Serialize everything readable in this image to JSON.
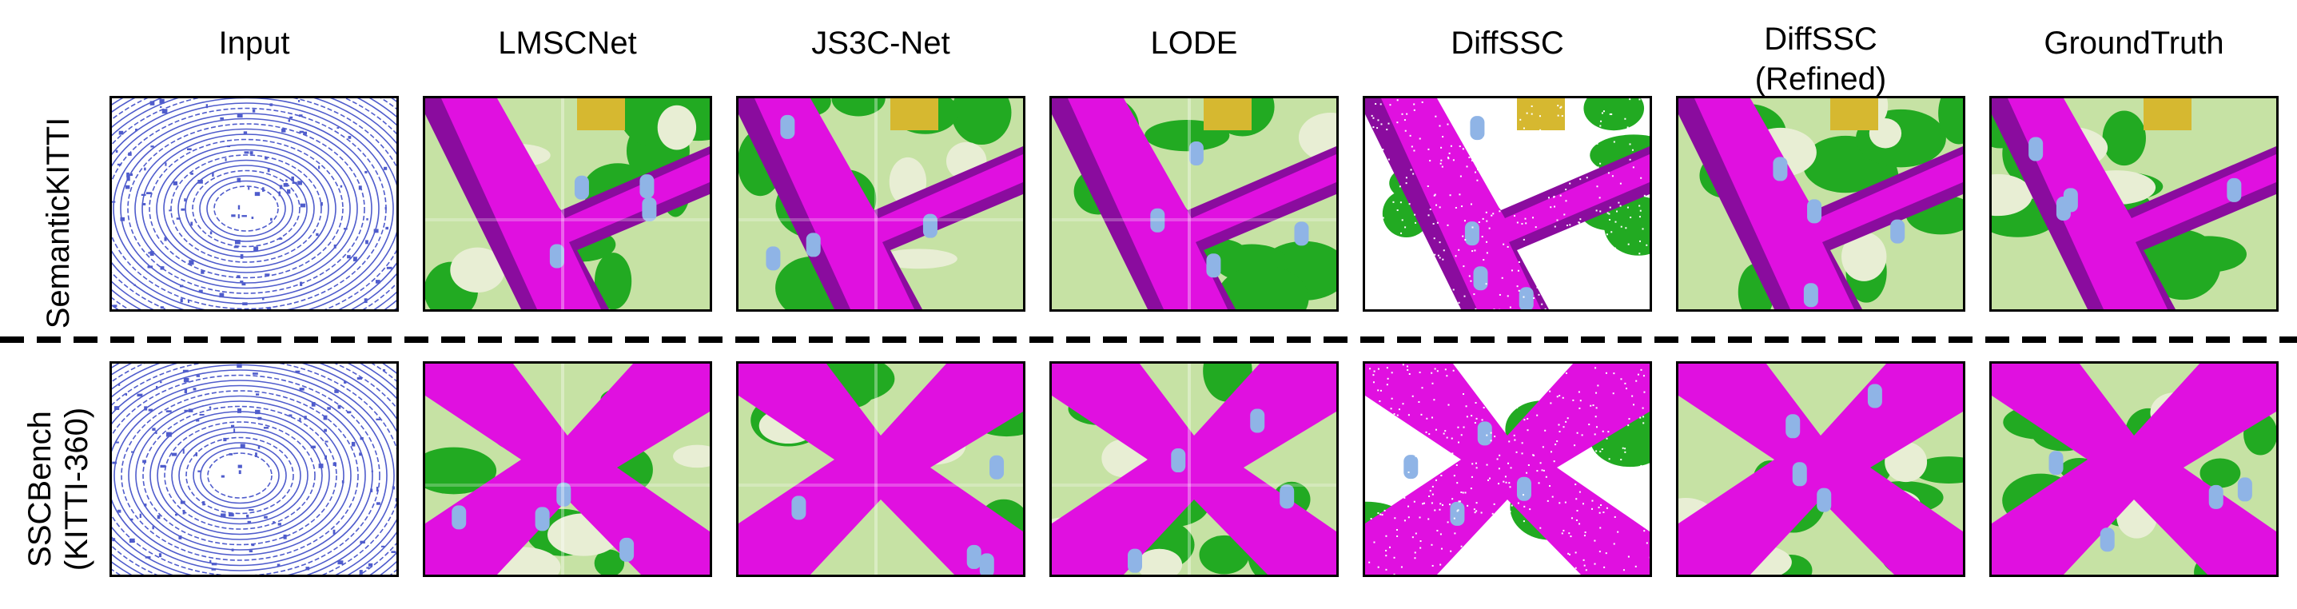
{
  "columns": [
    {
      "title": "Input"
    },
    {
      "title": "LMSCNet"
    },
    {
      "title": "JS3C-Net"
    },
    {
      "title": "LODE"
    },
    {
      "title": "DiffSSC"
    },
    {
      "title": "DiffSSC\n(Refined)"
    },
    {
      "title": "GroundTruth"
    }
  ],
  "rows": [
    {
      "label": "SemanticKITTI",
      "scene": "junction-diagonal"
    },
    {
      "label": "SSCBench\n(KITTI-360)",
      "scene": "junction-cross"
    }
  ],
  "colors": {
    "road": "#e010e0",
    "road_dark": "#8a0c9e",
    "terrain": "#c6e2a4",
    "vegetation": "#22aa22",
    "sidewalk_light": "#e8eed4",
    "building": "#d6b830",
    "car": "#8fb4e6",
    "lidar": "#4f5ccc",
    "white": "#ffffff"
  },
  "icons": [
    "lidar-scan-image",
    "semantic-map-image",
    "dashed-separator"
  ]
}
